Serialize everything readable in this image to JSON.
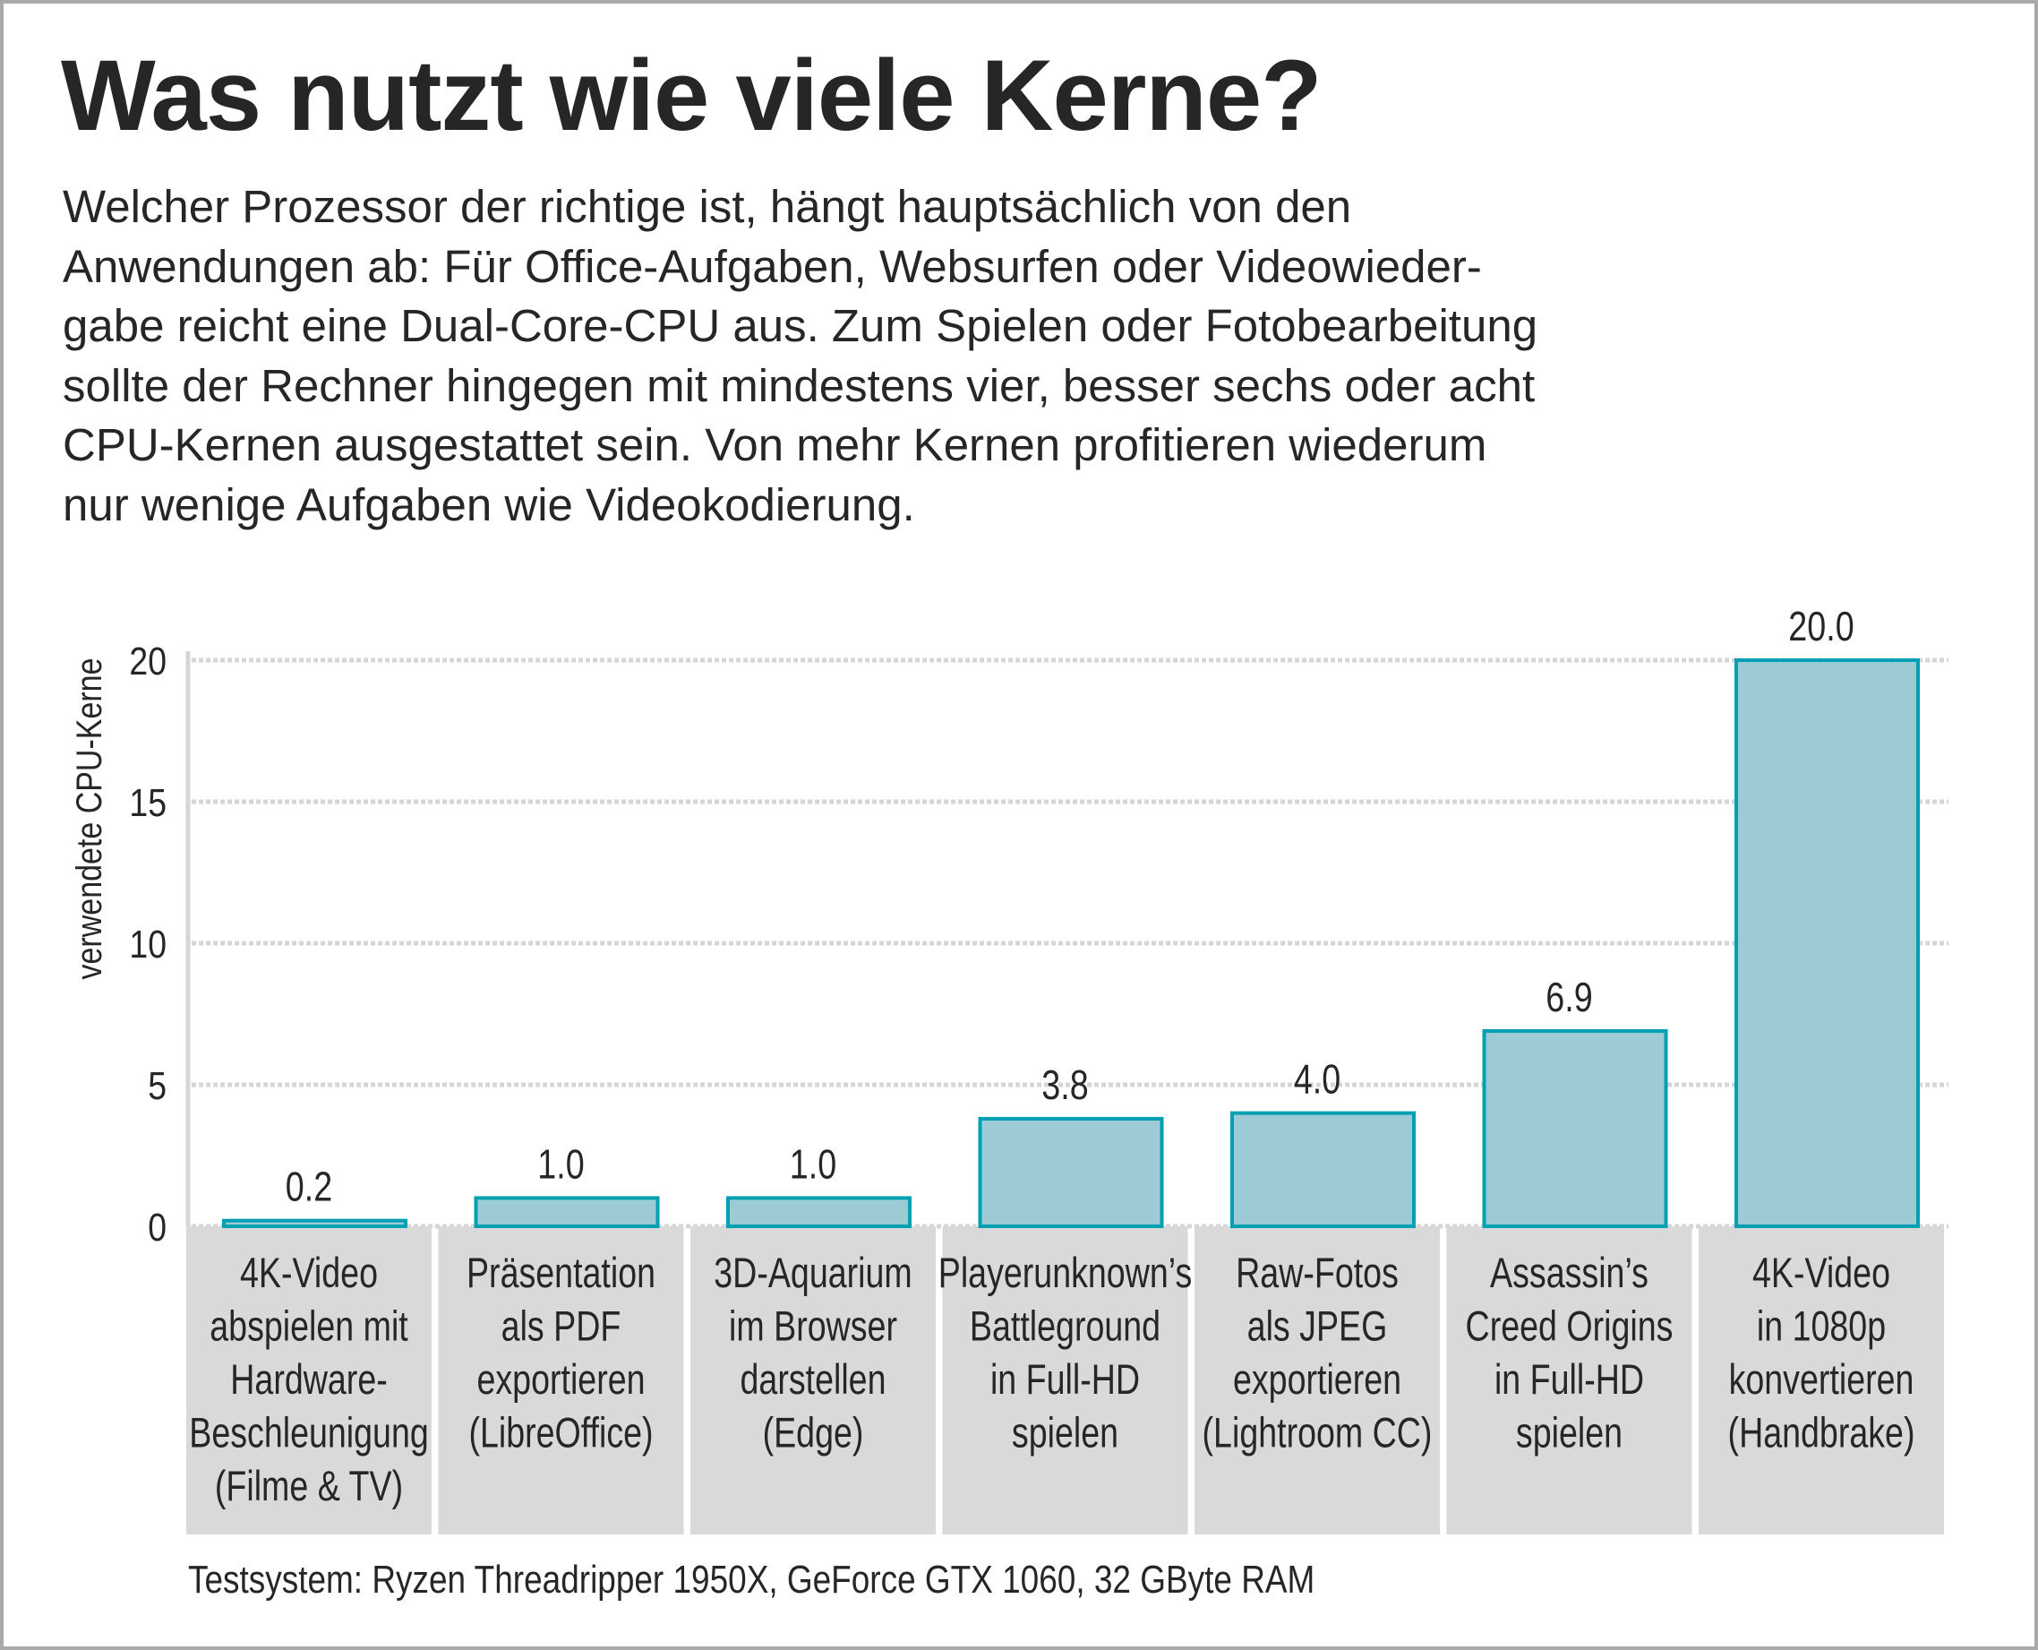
{
  "title": "Was nutzt wie viele Kerne?",
  "intro_lines": [
    "Welcher Prozessor der richtige ist, hängt hauptsächlich von den",
    "Anwendungen ab: Für Office-Aufgaben, Websurfen oder Videowieder-",
    "gabe reicht eine Dual-Core-CPU aus. Zum Spielen oder Fotobearbeitung",
    "sollte der Rechner hingegen mit mindestens vier, besser sechs oder acht",
    "CPU-Kernen ausgestattet sein. Von mehr Kernen profitieren wiederum",
    "nur wenige Aufgaben wie Videokodierung."
  ],
  "chart_data": {
    "type": "bar",
    "title": "",
    "xlabel": "",
    "ylabel": "verwendete CPU-Kerne",
    "ylim": [
      0,
      20
    ],
    "yticks": [
      0,
      5,
      10,
      15,
      20
    ],
    "grid": true,
    "categories": [
      [
        "4K-Video",
        "abspielen mit",
        "Hardware-",
        "Beschleunigung",
        "(Filme & TV)"
      ],
      [
        "Präsentation",
        "als PDF",
        "exportieren",
        "(LibreOffice)"
      ],
      [
        "3D-Aquarium",
        "im Browser",
        "darstellen",
        "(Edge)"
      ],
      [
        "Playerunknown’s",
        "Battleground",
        "in Full-HD",
        "spielen"
      ],
      [
        "Raw-Fotos",
        "als JPEG",
        "exportieren",
        "(Lightroom CC)"
      ],
      [
        "Assassin’s",
        "Creed Origins",
        "in Full-HD",
        "spielen"
      ],
      [
        "4K-Video",
        "in 1080p",
        "konvertieren",
        "(Handbrake)"
      ]
    ],
    "values": [
      0.2,
      1.0,
      1.0,
      3.8,
      4.0,
      6.9,
      20.0
    ],
    "data_labels": [
      "0.2",
      "1.0",
      "1.0",
      "3.8",
      "4.0",
      "6.9",
      "20.0"
    ],
    "colors": {
      "bar_fill": "#9ccbd6",
      "bar_stroke": "#00a0b2",
      "grid": "#d6d6d6",
      "category_box": "#d9d9d9"
    }
  },
  "footnote": "Testsystem: Ryzen Threadripper 1950X, GeForce GTX 1060, 32 GByte RAM"
}
